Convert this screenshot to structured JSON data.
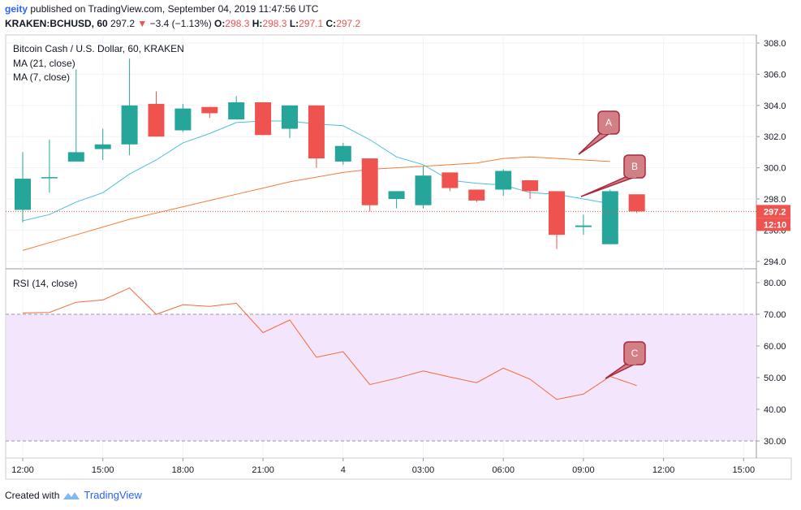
{
  "header": {
    "user": "geity",
    "published": "published on TradingView.com, September 04, 2019 11:47:56 UTC",
    "symbol": "KRAKEN:BCHUSD, 60",
    "last": "297.2",
    "change_arrow": "▼",
    "change": "−3.4 (−1.13%)",
    "o_label": "O:",
    "o_value": "298.3",
    "h_label": "H:",
    "h_value": "298.3",
    "l_label": "L:",
    "l_value": "297.1",
    "c_label": "C:",
    "c_value": "297.2"
  },
  "footer": {
    "created_with": "Created with",
    "brand": "TradingView"
  },
  "colors": {
    "up": "#26a69a",
    "down": "#ef5350",
    "ma21": "#f57c30",
    "ma7": "#4bc0d9",
    "rsi": "#f26b3a",
    "rsi_band": "#f3e5fb",
    "callout": "#d27f86",
    "callout_border": "#a8283e"
  },
  "chart_data": [
    {
      "type": "candlestick",
      "title": "Bitcoin Cash / U.S. Dollar, 60, KRAKEN",
      "x_ticks": [
        "12:00",
        "15:00",
        "18:00",
        "21:00",
        "4",
        "03:00",
        "06:00",
        "09:00",
        "12:00",
        "15:00"
      ],
      "y_ticks": [
        "308.0",
        "306.0",
        "304.0",
        "302.0",
        "300.0",
        "298.0",
        "296.0",
        "294.0"
      ],
      "ylim": [
        293.4,
        308.3
      ],
      "candles": [
        {
          "o": 297.3,
          "h": 301.0,
          "l": 296.5,
          "c": 299.3
        },
        {
          "o": 299.4,
          "h": 301.8,
          "l": 298.4,
          "c": 299.4
        },
        {
          "o": 300.4,
          "h": 306.3,
          "l": 300.4,
          "c": 301.0
        },
        {
          "o": 301.2,
          "h": 302.5,
          "l": 300.5,
          "c": 301.5
        },
        {
          "o": 301.5,
          "h": 307.0,
          "l": 300.8,
          "c": 304.0
        },
        {
          "o": 304.1,
          "h": 304.9,
          "l": 302.0,
          "c": 302.0
        },
        {
          "o": 302.4,
          "h": 304.1,
          "l": 302.3,
          "c": 303.8
        },
        {
          "o": 303.9,
          "h": 303.9,
          "l": 303.2,
          "c": 303.5
        },
        {
          "o": 303.1,
          "h": 304.6,
          "l": 303.1,
          "c": 304.2
        },
        {
          "o": 304.2,
          "h": 304.2,
          "l": 302.1,
          "c": 302.1
        },
        {
          "o": 302.5,
          "h": 304.0,
          "l": 301.9,
          "c": 304.0
        },
        {
          "o": 304.0,
          "h": 304.0,
          "l": 300.0,
          "c": 300.6
        },
        {
          "o": 300.4,
          "h": 301.6,
          "l": 300.2,
          "c": 301.4
        },
        {
          "o": 300.6,
          "h": 300.6,
          "l": 297.2,
          "c": 297.6
        },
        {
          "o": 298.0,
          "h": 298.5,
          "l": 297.4,
          "c": 298.5
        },
        {
          "o": 297.6,
          "h": 300.1,
          "l": 297.4,
          "c": 299.5
        },
        {
          "o": 299.7,
          "h": 299.7,
          "l": 298.5,
          "c": 298.7
        },
        {
          "o": 298.6,
          "h": 298.6,
          "l": 297.8,
          "c": 297.9
        },
        {
          "o": 298.6,
          "h": 299.9,
          "l": 298.2,
          "c": 299.8
        },
        {
          "o": 299.2,
          "h": 299.2,
          "l": 298.0,
          "c": 298.5
        },
        {
          "o": 298.5,
          "h": 298.5,
          "l": 294.8,
          "c": 295.7
        },
        {
          "o": 296.2,
          "h": 297.0,
          "l": 295.7,
          "c": 296.3
        },
        {
          "o": 295.1,
          "h": 298.6,
          "l": 295.1,
          "c": 298.5
        },
        {
          "o": 298.3,
          "h": 298.3,
          "l": 297.1,
          "c": 297.2
        }
      ],
      "series": [
        {
          "name": "MA (21, close)",
          "values": [
            294.7,
            295.2,
            295.7,
            296.2,
            296.7,
            297.1,
            297.5,
            297.9,
            298.3,
            298.7,
            299.1,
            299.4,
            299.7,
            299.9,
            300.0,
            300.1,
            300.2,
            300.3,
            300.6,
            300.7,
            300.6,
            300.5,
            300.4,
            null
          ]
        },
        {
          "name": "MA (7, close)",
          "values": [
            296.6,
            297.0,
            297.8,
            298.4,
            299.6,
            300.5,
            301.6,
            302.2,
            302.9,
            303.0,
            303.0,
            302.8,
            302.7,
            301.8,
            300.7,
            300.2,
            299.2,
            299.0,
            298.9,
            298.4,
            298.3,
            298.0,
            297.7,
            null
          ]
        }
      ],
      "last_price_label": "297.2",
      "countdown_label": "12:10",
      "callouts": [
        "A",
        "B"
      ]
    },
    {
      "type": "line",
      "title": "RSI (14, close)",
      "y_ticks": [
        "80.00",
        "70.00",
        "60.00",
        "50.00",
        "40.00",
        "30.00"
      ],
      "ylim": [
        25.5,
        82.6
      ],
      "band": [
        30,
        70
      ],
      "values": [
        70.4,
        70.6,
        73.8,
        74.5,
        78.3,
        70.0,
        73.0,
        72.5,
        73.5,
        64.2,
        68.2,
        56.4,
        58.2,
        47.8,
        49.8,
        52.1,
        50.2,
        48.4,
        53.0,
        49.5,
        43.1,
        44.8,
        50.4,
        47.5
      ],
      "callouts": [
        "C"
      ]
    }
  ]
}
